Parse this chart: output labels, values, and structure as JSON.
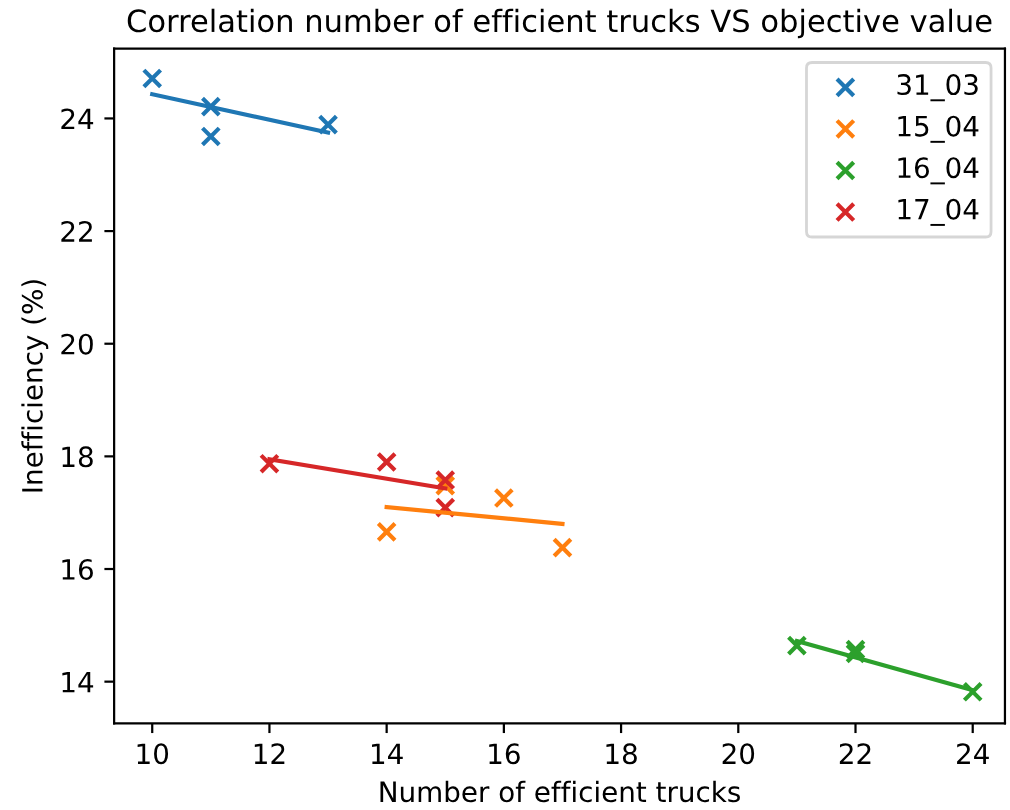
{
  "chart_data": {
    "type": "scatter",
    "title": "Correlation number of efficient trucks VS objective value",
    "xlabel": "Number of efficient trucks",
    "ylabel": "Inefficiency (%)",
    "xlim": [
      9.35,
      24.55
    ],
    "ylim": [
      13.26,
      25.24
    ],
    "xticks": [
      10,
      12,
      14,
      16,
      18,
      20,
      22,
      24
    ],
    "yticks": [
      14,
      16,
      18,
      20,
      22,
      24
    ],
    "grid": false,
    "legend": "top right",
    "series": [
      {
        "name": "31_03",
        "color": "#1f77b4",
        "marker": "cross",
        "x": [
          10,
          11,
          11,
          13
        ],
        "values": [
          24.71,
          24.21,
          23.68,
          23.89
        ]
      },
      {
        "name": "15_04",
        "color": "#ff7f0e",
        "marker": "cross",
        "x": [
          14,
          15,
          16,
          17
        ],
        "values": [
          16.66,
          17.48,
          17.26,
          16.38
        ]
      },
      {
        "name": "16_04",
        "color": "#2ca02c",
        "marker": "cross",
        "x": [
          21,
          22,
          22,
          24
        ],
        "values": [
          14.64,
          14.57,
          14.5,
          13.82
        ]
      },
      {
        "name": "17_04",
        "color": "#d62728",
        "marker": "cross",
        "x": [
          12,
          14,
          15,
          15
        ],
        "values": [
          17.87,
          17.9,
          17.58,
          17.09
        ]
      },
      {
        "type": "line",
        "marker": "none",
        "color": "#1f77b4",
        "x": [
          10,
          13
        ],
        "values": [
          24.43,
          23.75
        ]
      },
      {
        "type": "line",
        "marker": "none",
        "color": "#ff7f0e",
        "x": [
          14,
          17
        ],
        "values": [
          17.1,
          16.8
        ]
      },
      {
        "type": "line",
        "marker": "none",
        "color": "#2ca02c",
        "x": [
          21,
          24
        ],
        "values": [
          14.72,
          13.85
        ]
      },
      {
        "type": "line",
        "marker": "none",
        "color": "#d62728",
        "x": [
          12,
          15
        ],
        "values": [
          17.95,
          17.43
        ]
      }
    ]
  }
}
